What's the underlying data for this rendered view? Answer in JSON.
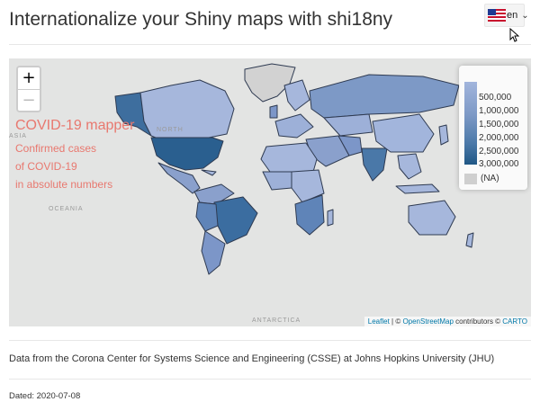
{
  "header": {
    "title": "Internationalize your Shiny maps with shi18ny",
    "language": {
      "selected": "en",
      "flag_icon": "us-flag-icon"
    }
  },
  "map": {
    "zoom": {
      "in_label": "+",
      "out_label": "−"
    },
    "overlay": {
      "title": "COVID-19 mapper",
      "subtitle_lines": [
        "Confirmed cases",
        "of COVID-19",
        "in absolute numbers"
      ],
      "color": "#e8786f"
    },
    "legend": {
      "labels": [
        "500,000",
        "1,000,000",
        "1,500,000",
        "2,000,000",
        "2,500,000",
        "3,000,000"
      ],
      "na_label": "(NA)",
      "color_low": "#a2b5dc",
      "color_high": "#1f5785",
      "na_color": "#cfcfcf"
    },
    "place_labels": {
      "asia": "ASIA",
      "north": "NORTH",
      "ocean": "OCEANIA",
      "antarctica": "ANTARCTICA"
    },
    "attribution": {
      "leaflet": "Leaflet",
      "separator": " | © ",
      "osm": "OpenStreetMap",
      "contributors": " contributors © ",
      "carto": "CARTO"
    }
  },
  "footer": {
    "source_text": "Data from the Corona Center for Systems Science and Engineering (CSSE) at Johns Hopkins University (JHU)",
    "dated_text": "Dated: 2020-07-08"
  }
}
